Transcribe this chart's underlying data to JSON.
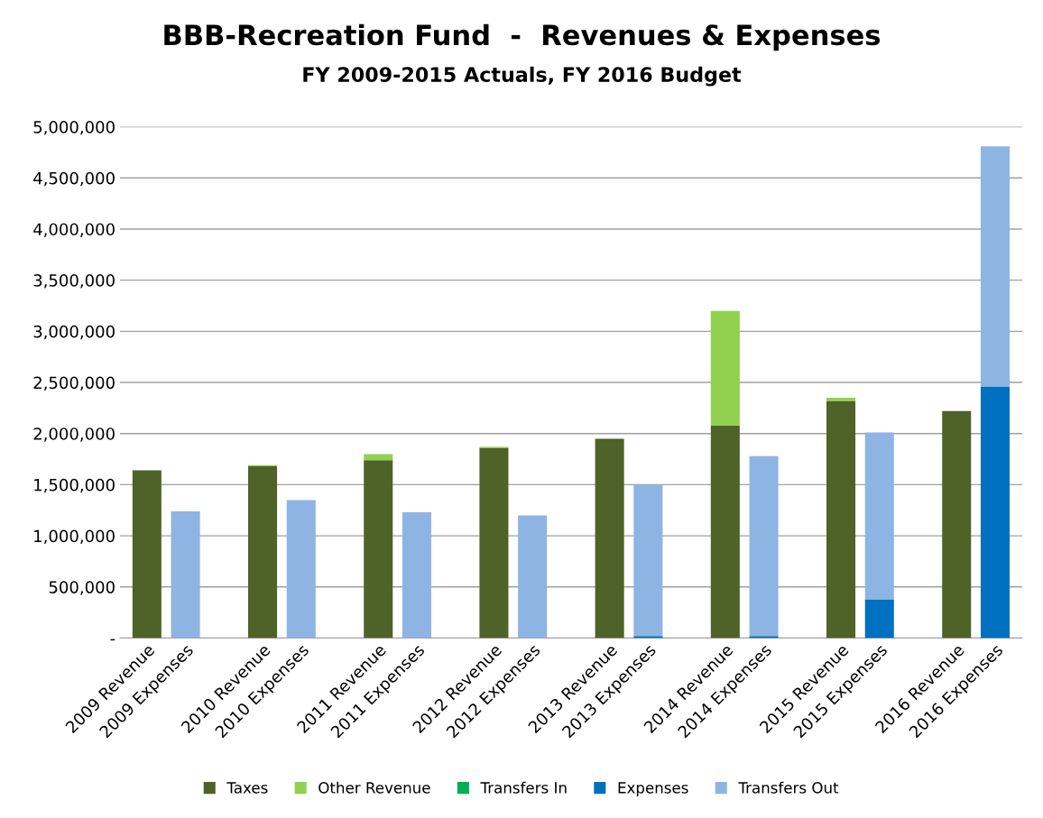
{
  "chart_data": {
    "type": "bar",
    "stacked": true,
    "title": "BBB-Recreation Fund  -  Revenues & Expenses",
    "subtitle": "FY 2009-2015 Actuals, FY 2016 Budget",
    "categories": [
      "2009 Revenue",
      "2009 Expenses",
      null,
      "2010 Revenue",
      "2010 Expenses",
      null,
      "2011 Revenue",
      "2011 Expenses",
      null,
      "2012 Revenue",
      "2012 Expenses",
      null,
      "2013 Revenue",
      "2013 Expenses",
      null,
      "2014 Revenue",
      "2014 Expenses",
      null,
      "2015 Revenue",
      "2015 Expenses",
      null,
      "2016 Revenue",
      "2016 Expenses"
    ],
    "series": [
      {
        "name": "Taxes",
        "color": "#4f6228",
        "values": [
          1640000,
          null,
          null,
          1680000,
          null,
          null,
          1740000,
          null,
          null,
          1860000,
          null,
          null,
          1950000,
          null,
          null,
          2080000,
          null,
          null,
          2320000,
          null,
          null,
          2220000,
          null
        ]
      },
      {
        "name": "Other Revenue",
        "color": "#92d050",
        "values": [
          0,
          null,
          null,
          10000,
          null,
          null,
          60000,
          null,
          null,
          10000,
          null,
          null,
          null,
          null,
          null,
          1120000,
          null,
          null,
          30000,
          null,
          null,
          null,
          null
        ]
      },
      {
        "name": "Transfers In",
        "color": "#00b050",
        "values": [
          0,
          null,
          null,
          0,
          null,
          null,
          0,
          null,
          null,
          0,
          null,
          null,
          0,
          null,
          null,
          0,
          null,
          null,
          0,
          null,
          null,
          0,
          null
        ]
      },
      {
        "name": "Expenses",
        "color": "#0070c0",
        "values": [
          null,
          0,
          null,
          null,
          0,
          null,
          null,
          0,
          null,
          null,
          0,
          null,
          null,
          20000,
          null,
          null,
          20000,
          null,
          null,
          380000,
          null,
          null,
          2460000
        ]
      },
      {
        "name": "Transfers Out",
        "color": "#8eb4e3",
        "values": [
          null,
          1240000,
          null,
          null,
          1350000,
          null,
          null,
          1230000,
          null,
          null,
          1200000,
          null,
          null,
          1480000,
          null,
          null,
          1760000,
          null,
          null,
          1630000,
          null,
          null,
          2350000
        ]
      }
    ],
    "ylim": [
      0,
      5000000
    ],
    "yticks": [
      {
        "value": 0,
        "label": "-"
      },
      {
        "value": 500000,
        "label": "500,000"
      },
      {
        "value": 1000000,
        "label": "1,000,000"
      },
      {
        "value": 1500000,
        "label": "1,500,000"
      },
      {
        "value": 2000000,
        "label": "2,000,000"
      },
      {
        "value": 2500000,
        "label": "2,500,000"
      },
      {
        "value": 3000000,
        "label": "3,000,000"
      },
      {
        "value": 3500000,
        "label": "3,500,000"
      },
      {
        "value": 4000000,
        "label": "4,000,000"
      },
      {
        "value": 4500000,
        "label": "4,500,000"
      },
      {
        "value": 5000000,
        "label": "5,000,000"
      }
    ],
    "grid": "y",
    "legend": "bottom"
  }
}
